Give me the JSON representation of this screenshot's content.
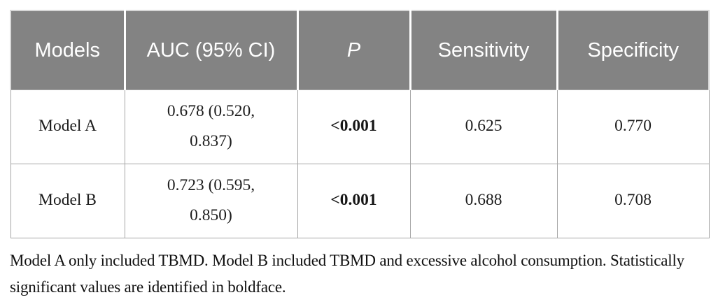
{
  "table": {
    "columns": [
      {
        "label": "Models"
      },
      {
        "label": "AUC (95% CI)"
      },
      {
        "label": "P"
      },
      {
        "label": "Sensitivity"
      },
      {
        "label": "Specificity"
      }
    ],
    "rows": [
      {
        "model": "Model A",
        "auc_ci": "0.678 (0.520, 0.837)",
        "p": "<0.001",
        "sensitivity": "0.625",
        "specificity": "0.770"
      },
      {
        "model": "Model B",
        "auc_ci": "0.723 (0.595, 0.850)",
        "p": "<0.001",
        "sensitivity": "0.688",
        "specificity": "0.708"
      }
    ]
  },
  "footnote": "Model A only included TBMD. Model B included TBMD and excessive alcohol consumption. Statistically significant values are identified in boldface.",
  "colors": {
    "header_bg": "#838383",
    "header_text": "#ffffff",
    "body_text": "#1c1c1c",
    "grid_border": "#a6a6a6"
  }
}
